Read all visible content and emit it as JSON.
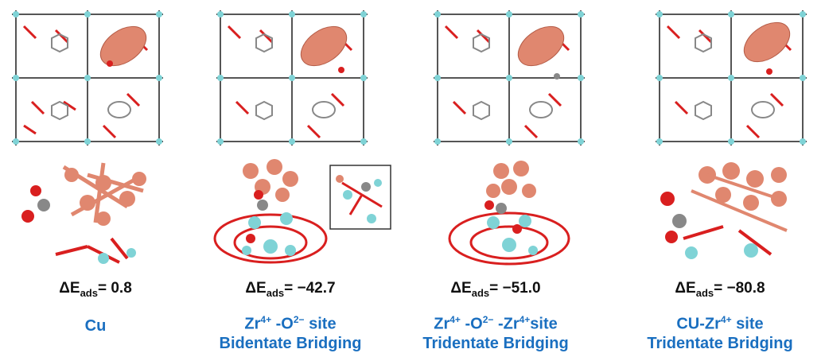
{
  "panels": [
    {
      "energy_prefix": "ΔE",
      "energy_sub": "ads",
      "energy_value": "= 0.8",
      "site_line1": "Cu",
      "site_line2": ""
    },
    {
      "energy_prefix": "ΔE",
      "energy_sub": "ads",
      "energy_value": "= −42.7",
      "site_line1_parts": [
        "Zr",
        "4+",
        " -O",
        "2−",
        " site"
      ],
      "site_line2": "Bidentate Bridging"
    },
    {
      "energy_prefix": "ΔE",
      "energy_sub": "ads",
      "energy_value": "= −51.0",
      "site_line1_parts": [
        "Zr",
        "4+",
        " -O",
        "2−",
        " -Zr",
        "4+",
        "site"
      ],
      "site_line2": "Tridentate Bridging"
    },
    {
      "energy_prefix": "ΔE",
      "energy_sub": "ads",
      "energy_value": "= −80.8",
      "site_line1_parts": [
        "CU-Zr",
        "4+",
        " site"
      ],
      "site_line2": "Tridentate Bridging"
    }
  ],
  "colors": {
    "copper": "#e0876f",
    "oxygen": "#d91f1f",
    "zirconium": "#7fd3d6",
    "carbon": "#7a7a7a",
    "label_blue": "#1a6fc0"
  }
}
